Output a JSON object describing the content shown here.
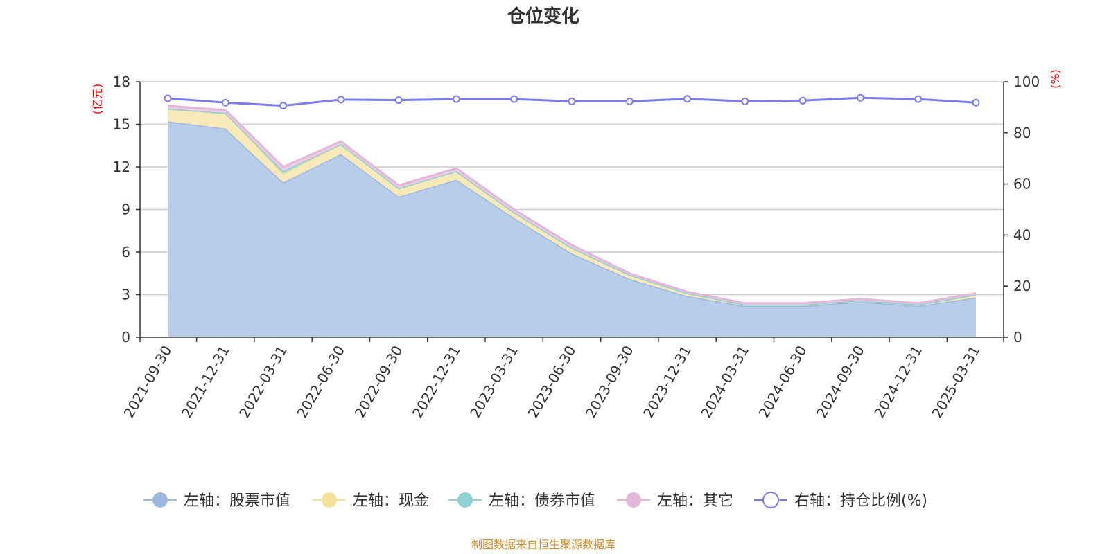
{
  "chart_data": {
    "type": "area",
    "title": "仓位变化",
    "x": [
      "2021-09-30",
      "2021-12-31",
      "2022-03-31",
      "2022-06-30",
      "2022-09-30",
      "2022-12-31",
      "2023-03-31",
      "2023-06-30",
      "2023-09-30",
      "2023-12-31",
      "2024-03-31",
      "2024-06-30",
      "2024-09-30",
      "2024-12-31",
      "2025-03-31"
    ],
    "y_left": {
      "label": "(亿元)",
      "range": [
        0,
        18
      ],
      "ticks": [
        0,
        3,
        6,
        9,
        12,
        15,
        18
      ]
    },
    "y_right": {
      "label": "(%)",
      "range": [
        0,
        100
      ],
      "ticks": [
        0,
        20,
        40,
        60,
        80,
        100
      ]
    },
    "stacked": true,
    "grid": true,
    "legend_position": "bottom",
    "series": [
      {
        "name": "左轴：股票市值",
        "axis": "left",
        "type": "area",
        "color": "#9db8e0",
        "fill": "#b8cdea",
        "values": [
          15.2,
          14.7,
          10.9,
          12.9,
          9.9,
          11.1,
          8.4,
          5.9,
          4.1,
          2.9,
          2.2,
          2.2,
          2.5,
          2.2,
          2.8
        ]
      },
      {
        "name": "左轴：现金",
        "axis": "left",
        "type": "area",
        "color": "#f5e29a",
        "fill": "#f8eab8",
        "values": [
          0.9,
          1.1,
          0.6,
          0.7,
          0.6,
          0.6,
          0.4,
          0.4,
          0.3,
          0.2,
          0.1,
          0.1,
          0.1,
          0.1,
          0.2
        ]
      },
      {
        "name": "左轴：债券市值",
        "axis": "left",
        "type": "area",
        "color": "#8fd0d0",
        "fill": "#a9dcdc",
        "values": [
          0.0,
          0.0,
          0.2,
          0.0,
          0.0,
          0.0,
          0.0,
          0.0,
          0.0,
          0.0,
          0.0,
          0.0,
          0.0,
          0.0,
          0.0
        ]
      },
      {
        "name": "左轴：其它",
        "axis": "left",
        "type": "area",
        "color": "#e3b7da",
        "fill": "#eccbe5",
        "values": [
          0.2,
          0.2,
          0.3,
          0.2,
          0.2,
          0.2,
          0.2,
          0.2,
          0.1,
          0.1,
          0.1,
          0.1,
          0.1,
          0.1,
          0.1
        ]
      },
      {
        "name": "右轴：持仓比例(%)",
        "axis": "right",
        "type": "line",
        "color": "#7b7bf0",
        "values": [
          93.5,
          91.8,
          90.6,
          93.0,
          92.8,
          93.2,
          93.2,
          92.3,
          92.3,
          93.3,
          92.3,
          92.6,
          93.7,
          93.2,
          91.8
        ]
      }
    ],
    "source": "制图数据来自恒生聚源数据库"
  },
  "colors": {
    "axis_label": "#ff0000",
    "source": "#c98a2a",
    "grid": "#cccccc"
  }
}
